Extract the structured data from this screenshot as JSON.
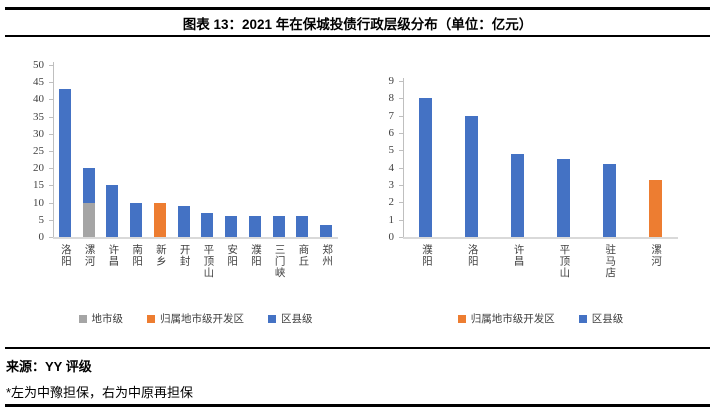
{
  "page": {
    "title": "图表 13：2021 年在保城投债行政层级分布（单位：亿元）",
    "source": "来源：YY 评级",
    "note": "*左为中豫担保，右为中原再担保"
  },
  "colors": {
    "blue": "#4472C4",
    "orange": "#ED7D31",
    "gray": "#A5A5A5",
    "axis": "#BFBFBF",
    "baseline": "#D9D9D9",
    "chart_text": "#404040"
  },
  "chart_data": [
    {
      "type": "bar",
      "stacked": true,
      "position": "left",
      "categories": [
        "洛阳",
        "漯河",
        "许昌",
        "南阳",
        "新乡",
        "开封",
        "平顶山",
        "安阳",
        "濮阳",
        "三门峡",
        "商丘",
        "郑州"
      ],
      "series": [
        {
          "name": "地市级",
          "color_key": "gray",
          "values": [
            0,
            10,
            0,
            0,
            0,
            0,
            0,
            0,
            0,
            0,
            0,
            0
          ]
        },
        {
          "name": "归属地市级开发区",
          "color_key": "orange",
          "values": [
            0,
            0,
            0,
            0,
            10,
            0,
            0,
            0,
            0,
            0,
            0,
            0
          ]
        },
        {
          "name": "区县级",
          "color_key": "blue",
          "values": [
            43,
            10,
            15,
            10,
            0,
            9,
            7,
            6,
            6,
            6,
            6,
            3.5
          ]
        }
      ],
      "ylim": [
        0,
        50
      ],
      "ytick_step": 5,
      "grid": false,
      "legend_position": "bottom"
    },
    {
      "type": "bar",
      "stacked": true,
      "position": "right",
      "categories": [
        "濮阳",
        "洛阳",
        "许昌",
        "平顶山",
        "驻马店",
        "漯河"
      ],
      "series": [
        {
          "name": "归属地市级开发区",
          "color_key": "orange",
          "values": [
            0,
            0,
            0,
            0,
            0,
            3.3
          ]
        },
        {
          "name": "区县级",
          "color_key": "blue",
          "values": [
            8,
            7,
            4.8,
            4.5,
            4.2,
            0
          ]
        }
      ],
      "ylim": [
        0,
        9
      ],
      "ytick_step": 1,
      "grid": false,
      "legend_position": "bottom"
    }
  ]
}
